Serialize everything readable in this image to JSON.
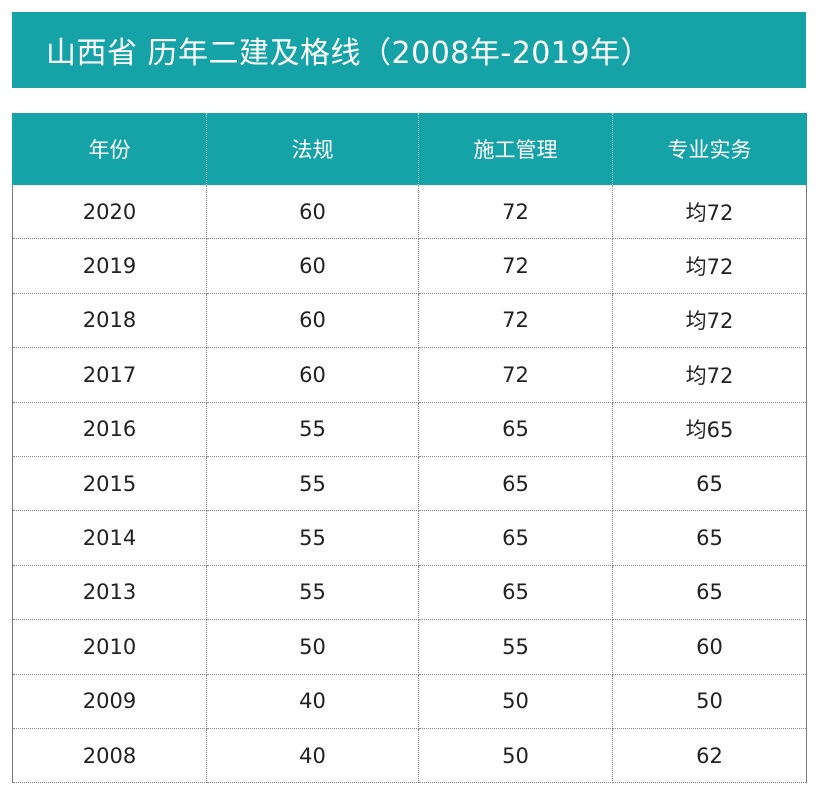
{
  "title": "山西省 历年二建及格线（2008年-2019年）",
  "columns": [
    "年份",
    "法规",
    "施工管理",
    "专业实务"
  ],
  "rows": [
    [
      "2020",
      "60",
      "72",
      "均72"
    ],
    [
      "2019",
      "60",
      "72",
      "均72"
    ],
    [
      "2018",
      "60",
      "72",
      "均72"
    ],
    [
      "2017",
      "60",
      "72",
      "均72"
    ],
    [
      "2016",
      "55",
      "65",
      "均65"
    ],
    [
      "2015",
      "55",
      "65",
      "65"
    ],
    [
      "2014",
      "55",
      "65",
      "65"
    ],
    [
      "2013",
      "55",
      "65",
      "65"
    ],
    [
      "2010",
      "50",
      "55",
      "60"
    ],
    [
      "2009",
      "40",
      "50",
      "50"
    ],
    [
      "2008",
      "40",
      "50",
      "62"
    ]
  ],
  "colors": {
    "header_bg": "#16a3a7",
    "header_text": "#ffffff",
    "cell_text": "#222222"
  }
}
